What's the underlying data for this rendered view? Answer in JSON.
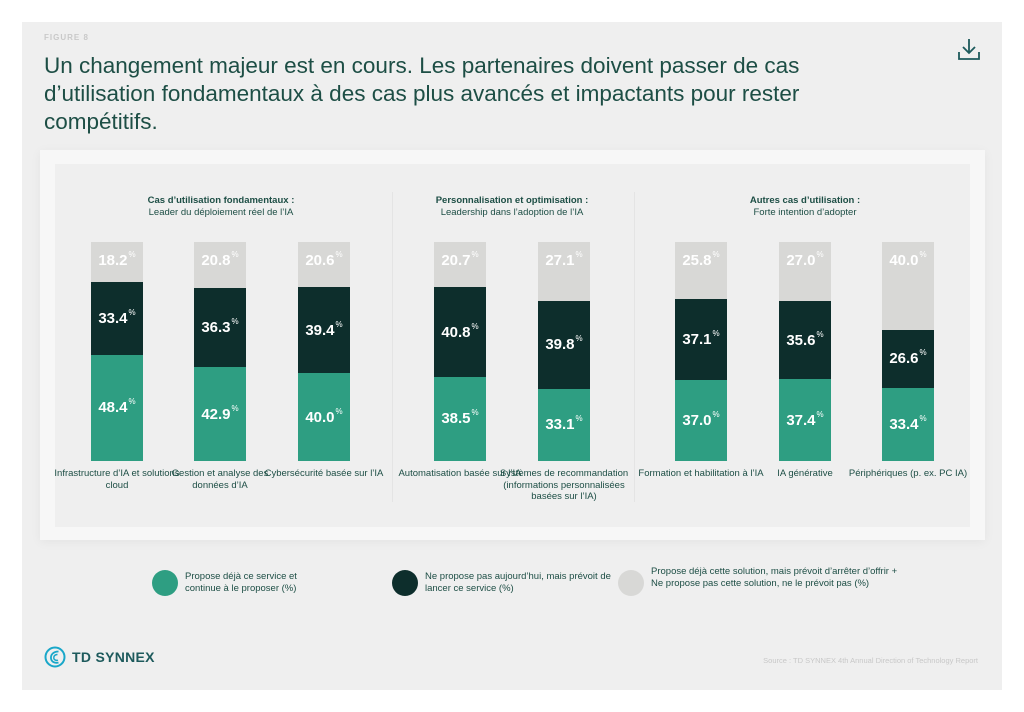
{
  "header": {
    "figure_label": "FIGURE 8",
    "title": "Un changement majeur est en cours. Les partenaires doivent passer de cas d’utilisation fondamentaux à des cas plus avancés et impactants pour rester compétitifs.",
    "download_icon": "download-icon"
  },
  "colors": {
    "current": "#2e9e82",
    "planned": "#0d2e2c",
    "other": "#d8d8d6",
    "text": "#1d4e45"
  },
  "chart_data": {
    "type": "bar",
    "stacked": true,
    "unit": "%",
    "ylim": [
      0,
      100
    ],
    "groups": [
      {
        "title": "Cas d’utilisation fondamentaux :",
        "subtitle": "Leader du déploiement réel de l’IA"
      },
      {
        "title": "Personnalisation et optimisation :",
        "subtitle": "Leadership dans l’adoption de l’IA"
      },
      {
        "title": "Autres cas d’utilisation :",
        "subtitle": "Forte intention d’adopter"
      }
    ],
    "categories": [
      {
        "group": 0,
        "label": "Infrastructure d’IA et solutions cloud"
      },
      {
        "group": 0,
        "label": "Gestion et analyse des données d’IA"
      },
      {
        "group": 0,
        "label": "Cybersécurité basée sur l’IA"
      },
      {
        "group": 1,
        "label": "Automatisation basée sur l’IA"
      },
      {
        "group": 1,
        "label": "Systèmes de recommandation (informations personnalisées basées sur l’IA)"
      },
      {
        "group": 2,
        "label": "Formation et habilitation à l’IA"
      },
      {
        "group": 2,
        "label": "IA générative"
      },
      {
        "group": 2,
        "label": "Périphériques (p. ex. PC IA)"
      }
    ],
    "series": [
      {
        "name": "Propose déjà ce service et continue à le proposer (%)",
        "key": "current",
        "values": [
          48.4,
          42.9,
          40.0,
          38.5,
          33.1,
          37.0,
          37.4,
          33.4
        ],
        "labels": [
          "48.4",
          "42.9",
          "40.0",
          "38.5",
          "33.1",
          "37.0",
          "37.4",
          "33.4"
        ]
      },
      {
        "name": "Ne propose pas aujourd’hui, mais prévoit de lancer ce service (%)",
        "key": "planned",
        "values": [
          33.4,
          36.3,
          39.4,
          40.8,
          39.8,
          37.1,
          35.6,
          26.6
        ],
        "labels": [
          "33.4",
          "36.3",
          "39.4",
          "40.8",
          "39.8",
          "37.1",
          "35.6",
          "26.6"
        ]
      },
      {
        "name": "Propose déjà cette solution, mais prévoit d’arrêter d’offrir + Ne propose pas cette solution, ne le prévoit pas (%)",
        "key": "other",
        "values": [
          18.2,
          20.8,
          20.6,
          20.7,
          27.1,
          25.8,
          27.0,
          40.0
        ],
        "labels": [
          "18.2",
          "20.8",
          "20.6",
          "20.7",
          "27.1",
          "25.8",
          "27.0",
          "40.0"
        ]
      }
    ],
    "legend_position": "bottom"
  },
  "legend": [
    {
      "label": "Propose déjà ce service et continue à le proposer (%)"
    },
    {
      "label": "Ne propose pas aujourd’hui, mais prévoit de lancer ce service (%)"
    },
    {
      "label": "Propose déjà cette solution, mais prévoit d’arrêter d’offrir + Ne propose pas cette solution, ne le prévoit pas (%)"
    }
  ],
  "footer": {
    "brand": "TD SYNNEX",
    "source": "Source : TD SYNNEX 4th Annual Direction of Technology Report"
  }
}
